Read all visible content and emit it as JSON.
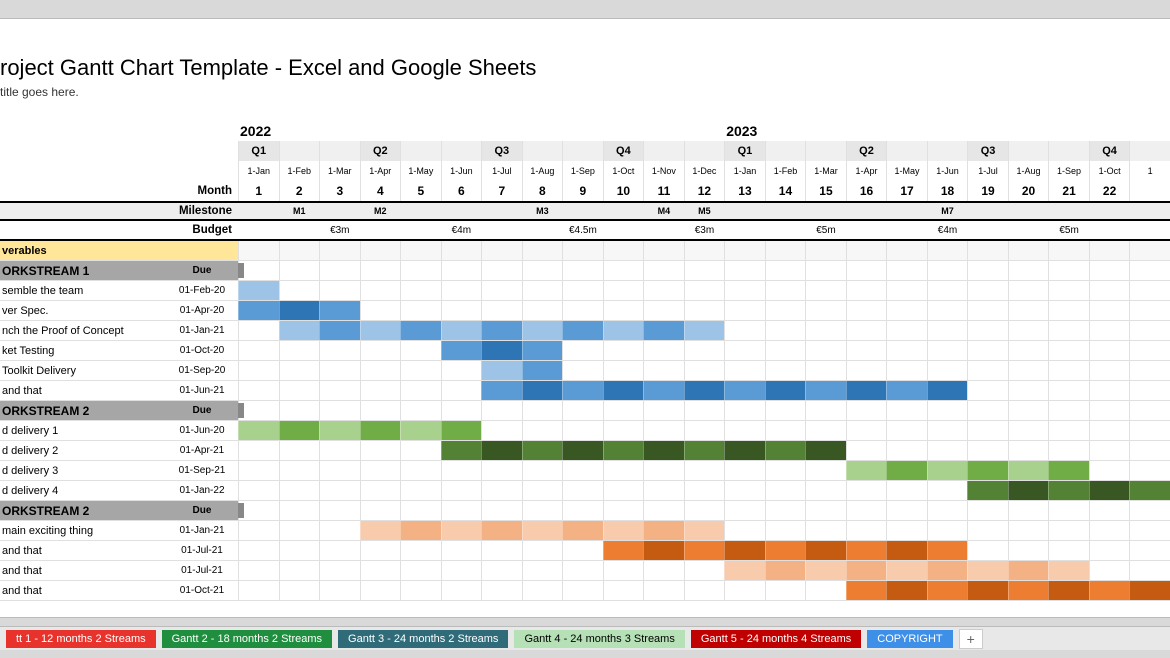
{
  "title": "roject Gantt Chart Template - Excel and Google Sheets",
  "subtitle": "title goes here.",
  "labels": {
    "month": "Month",
    "milestone": "Milestone",
    "budget": "Budget",
    "deliverables": "verables",
    "due": "Due"
  },
  "years": [
    {
      "label": "2022",
      "at": 0
    },
    {
      "label": "2023",
      "at": 12
    }
  ],
  "months": [
    {
      "date": "1-Jan",
      "num": "1",
      "q": "Q1",
      "qStart": true
    },
    {
      "date": "1-Feb",
      "num": "2",
      "q": "",
      "qStart": false
    },
    {
      "date": "1-Mar",
      "num": "3",
      "q": "",
      "qStart": false
    },
    {
      "date": "1-Apr",
      "num": "4",
      "q": "Q2",
      "qStart": true
    },
    {
      "date": "1-May",
      "num": "5",
      "q": "",
      "qStart": false
    },
    {
      "date": "1-Jun",
      "num": "6",
      "q": "",
      "qStart": false
    },
    {
      "date": "1-Jul",
      "num": "7",
      "q": "Q3",
      "qStart": true
    },
    {
      "date": "1-Aug",
      "num": "8",
      "q": "",
      "qStart": false
    },
    {
      "date": "1-Sep",
      "num": "9",
      "q": "",
      "qStart": false
    },
    {
      "date": "1-Oct",
      "num": "10",
      "q": "Q4",
      "qStart": true
    },
    {
      "date": "1-Nov",
      "num": "11",
      "q": "",
      "qStart": false
    },
    {
      "date": "1-Dec",
      "num": "12",
      "q": "",
      "qStart": false
    },
    {
      "date": "1-Jan",
      "num": "13",
      "q": "Q1",
      "qStart": true
    },
    {
      "date": "1-Feb",
      "num": "14",
      "q": "",
      "qStart": false
    },
    {
      "date": "1-Mar",
      "num": "15",
      "q": "",
      "qStart": false
    },
    {
      "date": "1-Apr",
      "num": "16",
      "q": "Q2",
      "qStart": true
    },
    {
      "date": "1-May",
      "num": "17",
      "q": "",
      "qStart": false
    },
    {
      "date": "1-Jun",
      "num": "18",
      "q": "",
      "qStart": false
    },
    {
      "date": "1-Jul",
      "num": "19",
      "q": "Q3",
      "qStart": true
    },
    {
      "date": "1-Aug",
      "num": "20",
      "q": "",
      "qStart": false
    },
    {
      "date": "1-Sep",
      "num": "21",
      "q": "",
      "qStart": false
    },
    {
      "date": "1-Oct",
      "num": "22",
      "q": "Q4",
      "qStart": true
    },
    {
      "date": "1",
      "num": "",
      "q": "",
      "qStart": false
    }
  ],
  "milestones": [
    {
      "at": 1,
      "label": "M1"
    },
    {
      "at": 3,
      "label": "M2"
    },
    {
      "at": 7,
      "label": "M3"
    },
    {
      "at": 10,
      "label": "M4"
    },
    {
      "at": 11,
      "label": "M5"
    },
    {
      "at": 17,
      "label": "M7"
    }
  ],
  "budgets": [
    {
      "at": 2,
      "label": "€3m"
    },
    {
      "at": 5,
      "label": "€4m"
    },
    {
      "at": 8,
      "label": "€4.5m"
    },
    {
      "at": 11,
      "label": "€3m"
    },
    {
      "at": 14,
      "label": "€5m"
    },
    {
      "at": 17,
      "label": "€4m"
    },
    {
      "at": 20,
      "label": "€5m"
    }
  ],
  "colors": {
    "blue_light": "#9dc3e6",
    "blue_mid": "#5b9bd5",
    "blue_dark": "#2e75b6",
    "green_light": "#a9d18e",
    "green_dark": "#548235",
    "orange_light": "#f4b183",
    "orange_dark": "#ed7d31",
    "ws_header": "#a6a6a6",
    "deliv_header": "#ffe699",
    "grid": "#e0e0e0",
    "bg": "#ffffff"
  },
  "workstreams": [
    {
      "name": "ORKSTREAM 1",
      "tasks": [
        {
          "name": "semble the team",
          "due": "01-Feb-20",
          "start": 0,
          "len": 1,
          "colorPair": [
            "#9dc3e6",
            "#5b9bd5"
          ]
        },
        {
          "name": "ver Spec.",
          "due": "01-Apr-20",
          "start": 0,
          "len": 3,
          "colorPair": [
            "#5b9bd5",
            "#2e75b6"
          ]
        },
        {
          "name": "nch the Proof of Concept",
          "due": "01-Jan-21",
          "start": 1,
          "len": 11,
          "colorPair": [
            "#9dc3e6",
            "#5b9bd5"
          ]
        },
        {
          "name": "ket Testing",
          "due": "01-Oct-20",
          "start": 5,
          "len": 3,
          "colorPair": [
            "#5b9bd5",
            "#2e75b6"
          ]
        },
        {
          "name": " Toolkit Delivery",
          "due": "01-Sep-20",
          "start": 6,
          "len": 2,
          "colorPair": [
            "#9dc3e6",
            "#5b9bd5"
          ]
        },
        {
          "name": " and that",
          "due": "01-Jun-21",
          "start": 6,
          "len": 12,
          "colorPair": [
            "#5b9bd5",
            "#2e75b6"
          ]
        }
      ]
    },
    {
      "name": "ORKSTREAM 2",
      "tasks": [
        {
          "name": "d delivery 1",
          "due": "01-Jun-20",
          "start": 0,
          "len": 6,
          "colorPair": [
            "#a9d18e",
            "#70ad47"
          ]
        },
        {
          "name": "d delivery 2",
          "due": "01-Apr-21",
          "start": 5,
          "len": 10,
          "colorPair": [
            "#548235",
            "#385723"
          ]
        },
        {
          "name": "d delivery 3",
          "due": "01-Sep-21",
          "start": 15,
          "len": 6,
          "colorPair": [
            "#a9d18e",
            "#70ad47"
          ]
        },
        {
          "name": "d delivery 4",
          "due": "01-Jan-22",
          "start": 18,
          "len": 5,
          "colorPair": [
            "#548235",
            "#385723"
          ]
        }
      ]
    },
    {
      "name": "ORKSTREAM 2",
      "tasks": [
        {
          "name": " main exciting thing",
          "due": "01-Jan-21",
          "start": 3,
          "len": 9,
          "colorPair": [
            "#f8cbad",
            "#f4b183"
          ]
        },
        {
          "name": " and that",
          "due": "01-Jul-21",
          "start": 9,
          "len": 9,
          "colorPair": [
            "#ed7d31",
            "#c55a11"
          ]
        },
        {
          "name": " and that",
          "due": "01-Jul-21",
          "start": 12,
          "len": 9,
          "colorPair": [
            "#f8cbad",
            "#f4b183"
          ]
        },
        {
          "name": " and that",
          "due": "01-Oct-21",
          "start": 15,
          "len": 8,
          "colorPair": [
            "#ed7d31",
            "#c55a11"
          ]
        }
      ]
    }
  ],
  "tabs": [
    {
      "label": "tt 1 - 12 months  2 Streams",
      "bg": "#e8332d",
      "color": "#fff"
    },
    {
      "label": "Gantt 2 - 18 months 2 Streams",
      "bg": "#1f8f3f",
      "color": "#fff"
    },
    {
      "label": "Gantt 3 - 24 months 2 Streams",
      "bg": "#2f6b78",
      "color": "#fff"
    },
    {
      "label": "Gantt 4 - 24 months 3 Streams",
      "bg": "#b6e0b6",
      "color": "#000"
    },
    {
      "label": "Gantt 5 - 24 months 4 Streams",
      "bg": "#c00000",
      "color": "#fff"
    },
    {
      "label": "COPYRIGHT",
      "bg": "#3d8fe8",
      "color": "#fff"
    }
  ],
  "addTabGlyph": "+"
}
